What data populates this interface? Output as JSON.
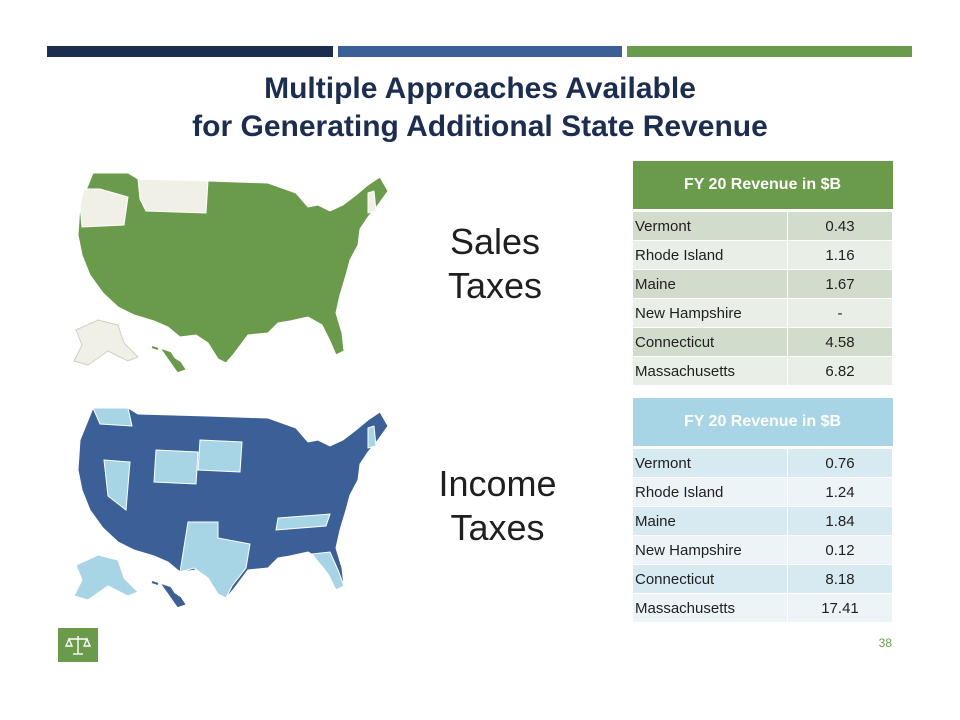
{
  "slide": {
    "title_line1": "Multiple Approaches Available",
    "title_line2": "for Generating Additional State Revenue",
    "page_number": "38"
  },
  "colors": {
    "navy": "#1c2d52",
    "blue": "#3b5f97",
    "green": "#6a9b4b",
    "light_blue": "#a7d5e5",
    "no_tax": "#f1f0e7"
  },
  "sales": {
    "label_line1": "Sales",
    "label_line2": "Taxes",
    "table_header": "FY 20 Revenue in $B",
    "rows": [
      {
        "state": "Vermont",
        "value": "0.43"
      },
      {
        "state": "Rhode Island",
        "value": "1.16"
      },
      {
        "state": "Maine",
        "value": "1.67"
      },
      {
        "state": "New Hampshire",
        "value": "-"
      },
      {
        "state": "Connecticut",
        "value": "4.58"
      },
      {
        "state": "Massachusetts",
        "value": "6.82"
      }
    ]
  },
  "income": {
    "label_line1": "Income",
    "label_line2": "Taxes",
    "table_header": "FY 20 Revenue in $B",
    "rows": [
      {
        "state": "Vermont",
        "value": "0.76"
      },
      {
        "state": "Rhode Island",
        "value": "1.24"
      },
      {
        "state": "Maine",
        "value": "1.84"
      },
      {
        "state": "New Hampshire",
        "value": "0.12"
      },
      {
        "state": "Connecticut",
        "value": "8.18"
      },
      {
        "state": "Massachusetts",
        "value": "17.41"
      }
    ]
  },
  "logo": {
    "icon": "scales-of-justice-icon"
  }
}
